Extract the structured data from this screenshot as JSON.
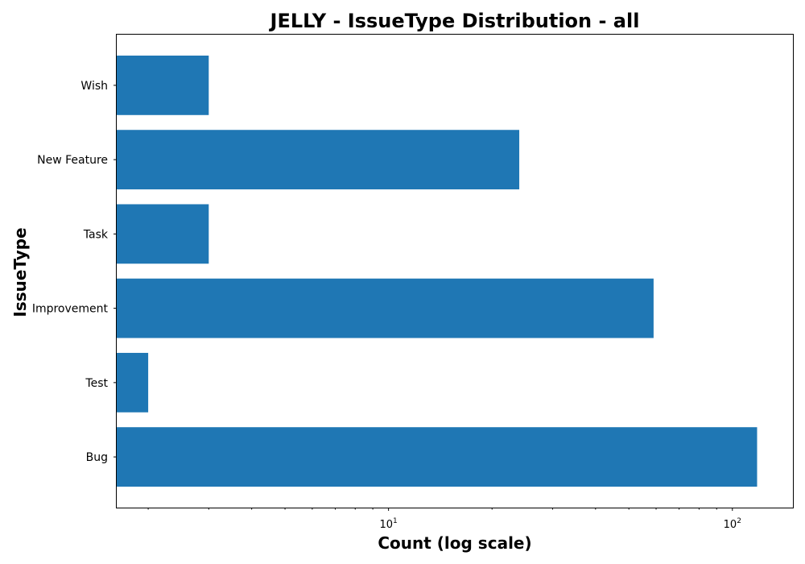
{
  "chart_data": {
    "type": "bar",
    "orientation": "horizontal",
    "title": "JELLY - IssueType Distribution - all",
    "xlabel": "Count (log scale)",
    "ylabel": "IssueType",
    "x_scale": "log",
    "xlim": [
      1.62,
      150
    ],
    "categories": [
      "Bug",
      "Test",
      "Improvement",
      "Task",
      "New Feature",
      "Wish"
    ],
    "values": [
      118,
      2,
      59,
      3,
      24,
      3
    ],
    "bar_color": "#1f77b4",
    "x_major_ticks": [
      {
        "value": 10,
        "base": "10",
        "exp": "1"
      },
      {
        "value": 100,
        "base": "10",
        "exp": "2"
      }
    ],
    "x_minor_ticks": [
      2,
      3,
      4,
      5,
      6,
      7,
      8,
      9,
      20,
      30,
      40,
      50,
      60,
      70,
      80,
      90
    ],
    "grid": false,
    "legend": "none"
  }
}
